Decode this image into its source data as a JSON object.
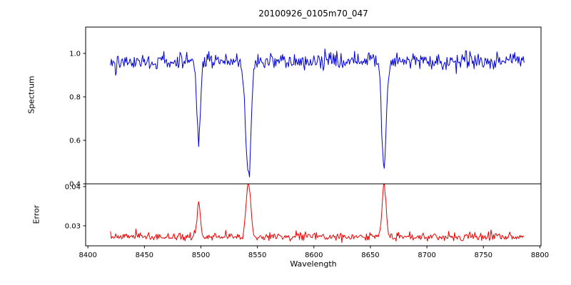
{
  "figure": {
    "title": "20100926_0105m70_047",
    "background": "#ffffff",
    "text_color": "#000000"
  },
  "chart_data": [
    {
      "type": "line",
      "name": "spectrum",
      "title": "20100926_0105m70_047",
      "ylabel": "Spectrum",
      "xlabel": "",
      "legend": "none",
      "grid": false,
      "color": "#0000dd",
      "xlim": [
        8398,
        8801
      ],
      "ylim": [
        0.4,
        1.121
      ],
      "yticks": [
        1.0,
        0.8,
        0.6,
        0.4
      ],
      "ytick_labels": [
        "1.0",
        "0.8",
        "0.6",
        "0.4"
      ],
      "x_range": [
        8420,
        8786
      ],
      "step": 0.75,
      "seed": 42,
      "continuum": 0.965,
      "noise_sigma": 0.02,
      "absorption_lines": [
        {
          "center": 8498,
          "min": 0.6,
          "sigma": 1.6
        },
        {
          "center": 8542,
          "min": 0.43,
          "sigma": 2.3
        },
        {
          "center": 8662,
          "min": 0.47,
          "sigma": 2.0
        }
      ]
    },
    {
      "type": "line",
      "name": "error",
      "ylabel": "Error",
      "xlabel": "Wavelength",
      "legend": "none",
      "grid": false,
      "color": "#ee0000",
      "xlim": [
        8398,
        8801
      ],
      "ylim": [
        0.0249,
        0.0407
      ],
      "yticks": [
        0.04,
        0.03
      ],
      "ytick_labels": [
        "0.04",
        "0.03"
      ],
      "xticks": [
        8400,
        8450,
        8500,
        8550,
        8600,
        8650,
        8700,
        8750,
        8800
      ],
      "xtick_labels": [
        "8400",
        "8450",
        "8500",
        "8550",
        "8600",
        "8650",
        "8700",
        "8750",
        "8800"
      ],
      "x_range": [
        8420,
        8786
      ],
      "step": 0.75,
      "seed": 7,
      "baseline": 0.0272,
      "noise_sigma": 0.0005,
      "peaks": [
        {
          "center": 8498,
          "max": 0.0355,
          "sigma": 1.5
        },
        {
          "center": 8542,
          "max": 0.0412,
          "sigma": 2.0
        },
        {
          "center": 8662,
          "max": 0.0403,
          "sigma": 1.8
        }
      ]
    }
  ]
}
